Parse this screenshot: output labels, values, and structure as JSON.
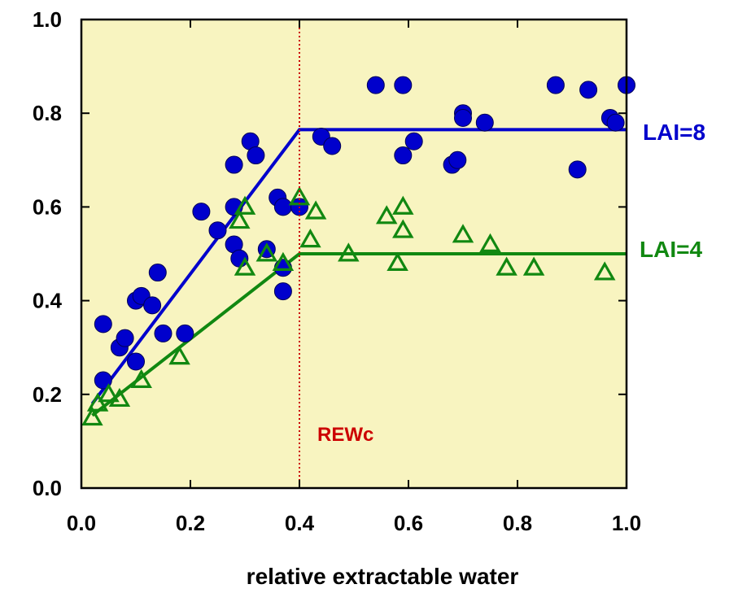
{
  "chart_data": {
    "type": "scatter",
    "xlabel": "relative extractable water",
    "ylabel": "",
    "xlim": [
      0.0,
      1.0
    ],
    "ylim": [
      0.0,
      1.0
    ],
    "xticks": [
      "0.0",
      "0.2",
      "0.4",
      "0.6",
      "0.8",
      "1.0"
    ],
    "yticks": [
      "0.0",
      "0.2",
      "0.4",
      "0.6",
      "0.8",
      "1.0"
    ],
    "grid": false,
    "plot_background": "#f8f4c0",
    "annotation": {
      "text": "REWc",
      "x": 0.4,
      "color": "#cc0000"
    },
    "series": [
      {
        "name": "LAI=8",
        "marker": "circle",
        "color": "#0000cc",
        "points": [
          [
            0.04,
            0.35
          ],
          [
            0.04,
            0.23
          ],
          [
            0.07,
            0.3
          ],
          [
            0.08,
            0.32
          ],
          [
            0.1,
            0.27
          ],
          [
            0.1,
            0.4
          ],
          [
            0.11,
            0.41
          ],
          [
            0.13,
            0.39
          ],
          [
            0.14,
            0.46
          ],
          [
            0.15,
            0.33
          ],
          [
            0.19,
            0.33
          ],
          [
            0.22,
            0.59
          ],
          [
            0.25,
            0.55
          ],
          [
            0.28,
            0.69
          ],
          [
            0.28,
            0.6
          ],
          [
            0.28,
            0.52
          ],
          [
            0.29,
            0.49
          ],
          [
            0.31,
            0.74
          ],
          [
            0.32,
            0.71
          ],
          [
            0.34,
            0.51
          ],
          [
            0.36,
            0.62
          ],
          [
            0.37,
            0.6
          ],
          [
            0.37,
            0.47
          ],
          [
            0.37,
            0.42
          ],
          [
            0.4,
            0.6
          ],
          [
            0.44,
            0.75
          ],
          [
            0.46,
            0.73
          ],
          [
            0.54,
            0.86
          ],
          [
            0.59,
            0.86
          ],
          [
            0.59,
            0.71
          ],
          [
            0.61,
            0.74
          ],
          [
            0.68,
            0.69
          ],
          [
            0.69,
            0.7
          ],
          [
            0.7,
            0.8
          ],
          [
            0.7,
            0.79
          ],
          [
            0.74,
            0.78
          ],
          [
            0.87,
            0.86
          ],
          [
            0.91,
            0.68
          ],
          [
            0.93,
            0.85
          ],
          [
            0.97,
            0.79
          ],
          [
            0.98,
            0.78
          ],
          [
            1.0,
            0.86
          ]
        ],
        "fit": [
          [
            0.02,
            0.18
          ],
          [
            0.4,
            0.765
          ],
          [
            1.0,
            0.765
          ]
        ],
        "label": "LAI=8"
      },
      {
        "name": "LAI=4",
        "marker": "triangle",
        "color": "#118811",
        "points": [
          [
            0.02,
            0.15
          ],
          [
            0.03,
            0.18
          ],
          [
            0.05,
            0.2
          ],
          [
            0.07,
            0.19
          ],
          [
            0.11,
            0.23
          ],
          [
            0.18,
            0.28
          ],
          [
            0.29,
            0.57
          ],
          [
            0.3,
            0.6
          ],
          [
            0.3,
            0.47
          ],
          [
            0.34,
            0.5
          ],
          [
            0.37,
            0.48
          ],
          [
            0.4,
            0.62
          ],
          [
            0.42,
            0.53
          ],
          [
            0.43,
            0.59
          ],
          [
            0.49,
            0.5
          ],
          [
            0.56,
            0.58
          ],
          [
            0.58,
            0.48
          ],
          [
            0.59,
            0.55
          ],
          [
            0.59,
            0.6
          ],
          [
            0.7,
            0.54
          ],
          [
            0.75,
            0.52
          ],
          [
            0.78,
            0.47
          ],
          [
            0.83,
            0.47
          ],
          [
            0.96,
            0.46
          ]
        ],
        "fit": [
          [
            0.02,
            0.155
          ],
          [
            0.4,
            0.5
          ],
          [
            1.0,
            0.5
          ]
        ],
        "label": "LAI=4"
      }
    ]
  }
}
